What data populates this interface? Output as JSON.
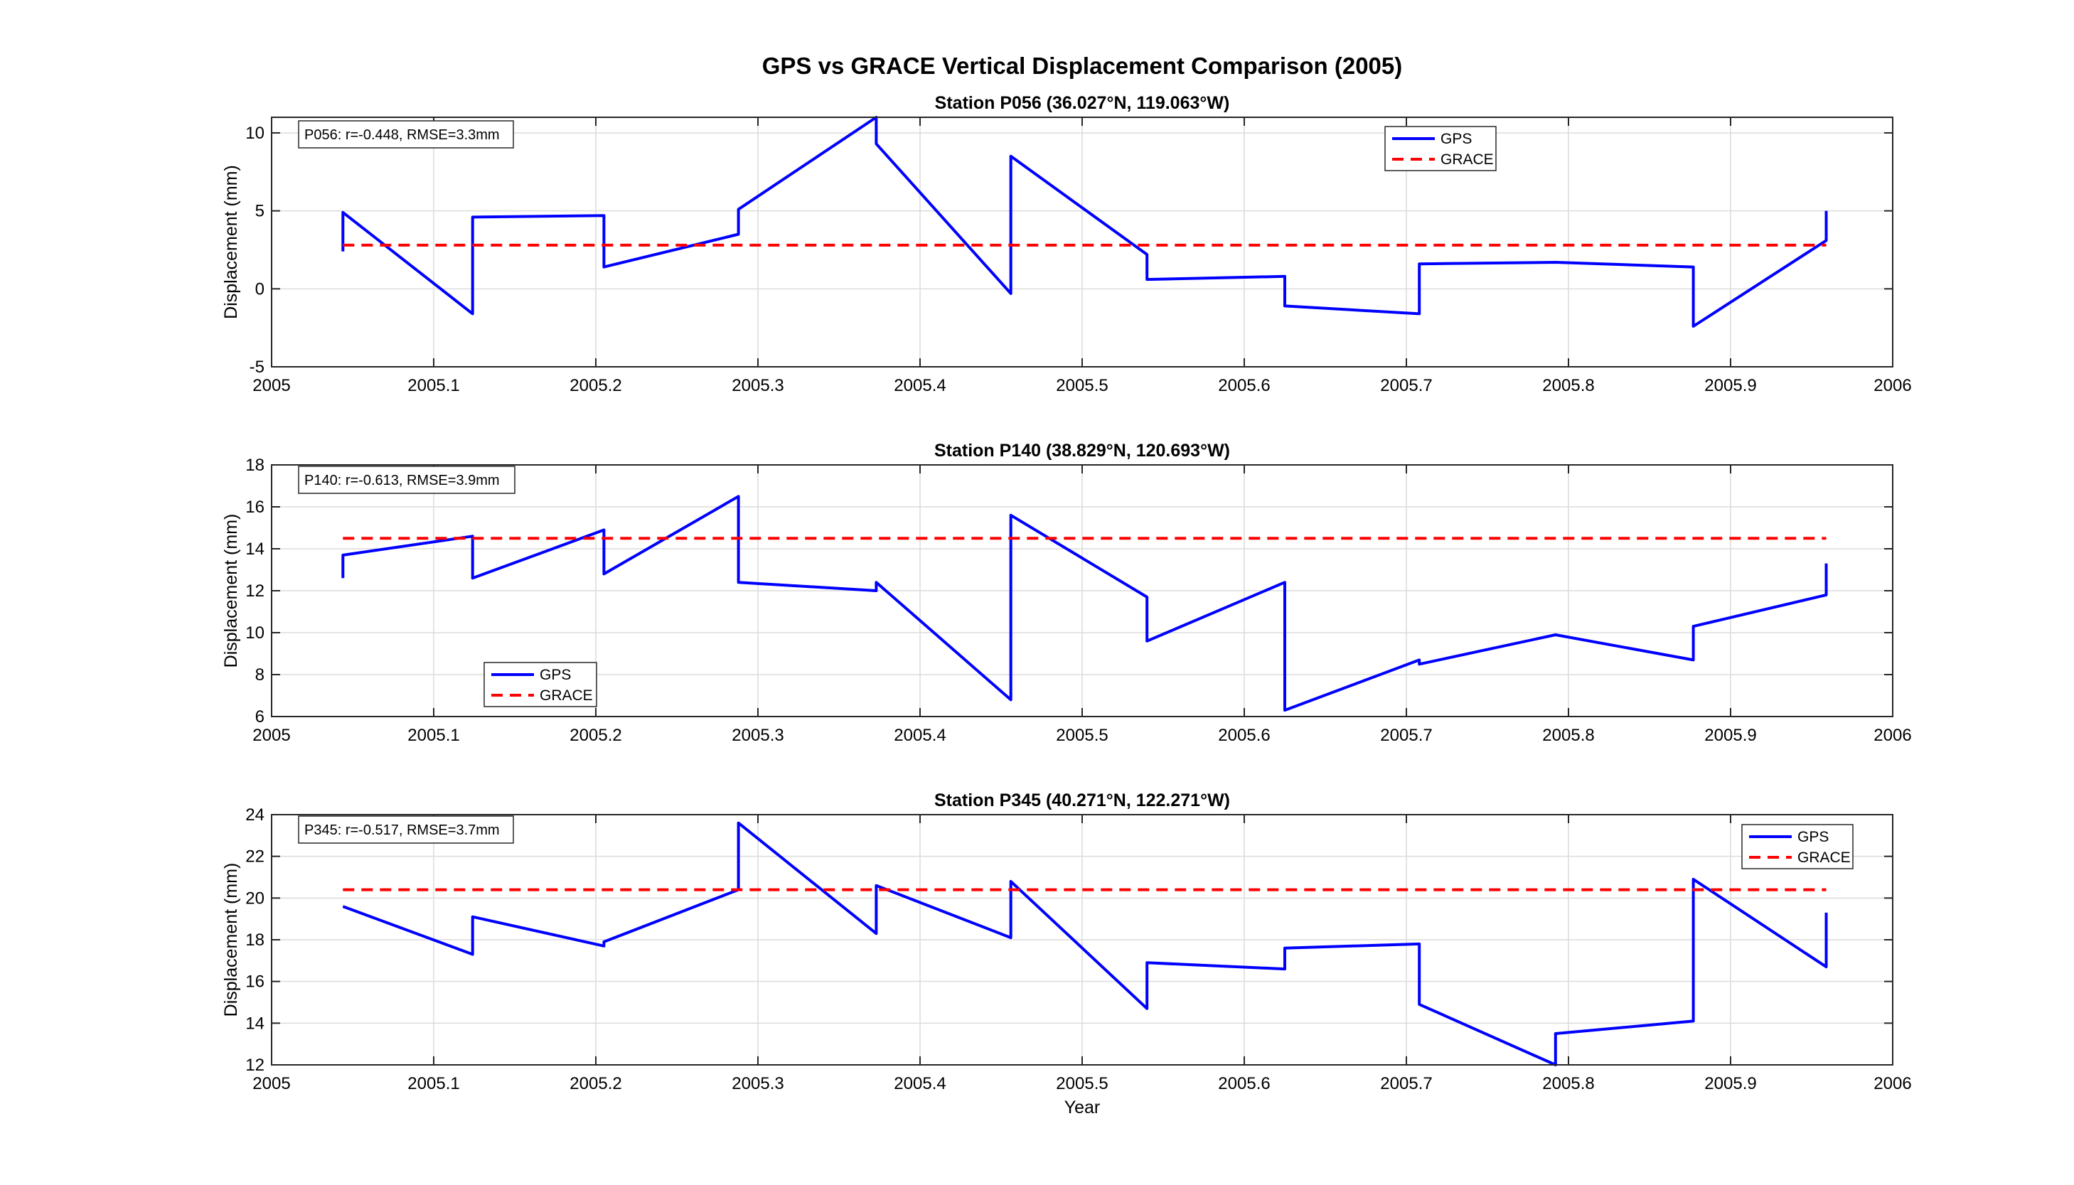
{
  "figure": {
    "title": "GPS vs GRACE Vertical Displacement Comparison (2005)"
  },
  "colors": {
    "gps": "#0000ff",
    "grace": "#ff0000",
    "grid": "#dcdcdc"
  },
  "chart_data": [
    {
      "type": "line",
      "title": "Station P056 (36.027°N, 119.063°W)",
      "xlabel": "",
      "ylabel": "Displacement (mm)",
      "xlim": [
        2005,
        2006
      ],
      "ylim": [
        -5,
        11
      ],
      "xticks": [
        2005,
        2005.1,
        2005.2,
        2005.3,
        2005.4,
        2005.5,
        2005.6,
        2005.7,
        2005.8,
        2005.9,
        2006
      ],
      "xtick_labels": [
        "2005",
        "2005.1",
        "2005.2",
        "2005.3",
        "2005.4",
        "2005.5",
        "2005.6",
        "2005.7",
        "2005.8",
        "2005.9",
        "2006"
      ],
      "yticks": [
        -5,
        0,
        5,
        10
      ],
      "ytick_labels": [
        "-5",
        "0",
        "5",
        "10"
      ],
      "grid": true,
      "legend_position": "top-right",
      "annotation": "P056: r=-0.448, RMSE=3.3mm",
      "series": [
        {
          "name": "GPS",
          "style": "solid",
          "x": [
            2005.044,
            2005.044,
            2005.124,
            2005.124,
            2005.205,
            2005.205,
            2005.288,
            2005.288,
            2005.373,
            2005.373,
            2005.456,
            2005.456,
            2005.54,
            2005.54,
            2005.625,
            2005.625,
            2005.708,
            2005.708,
            2005.792,
            2005.877,
            2005.877,
            2005.959,
            2005.959
          ],
          "y": [
            2.4,
            4.9,
            -1.6,
            4.6,
            4.7,
            1.4,
            3.5,
            5.1,
            11.0,
            9.3,
            -0.3,
            8.5,
            2.2,
            0.6,
            0.8,
            -1.1,
            -1.6,
            1.6,
            1.7,
            1.4,
            -2.4,
            3.1,
            5.0
          ]
        },
        {
          "name": "GRACE",
          "style": "dashed",
          "x": [
            2005.044,
            2005.959
          ],
          "y": [
            2.8,
            2.8
          ]
        }
      ]
    },
    {
      "type": "line",
      "title": "Station P140 (38.829°N, 120.693°W)",
      "xlabel": "",
      "ylabel": "Displacement (mm)",
      "xlim": [
        2005,
        2006
      ],
      "ylim": [
        6,
        18
      ],
      "xticks": [
        2005,
        2005.1,
        2005.2,
        2005.3,
        2005.4,
        2005.5,
        2005.6,
        2005.7,
        2005.8,
        2005.9,
        2006
      ],
      "xtick_labels": [
        "2005",
        "2005.1",
        "2005.2",
        "2005.3",
        "2005.4",
        "2005.5",
        "2005.6",
        "2005.7",
        "2005.8",
        "2005.9",
        "2006"
      ],
      "yticks": [
        6,
        8,
        10,
        12,
        14,
        16,
        18
      ],
      "ytick_labels": [
        "6",
        "8",
        "10",
        "12",
        "14",
        "16",
        "18"
      ],
      "grid": true,
      "legend_position": "bottom-left",
      "annotation": "P140: r=-0.613, RMSE=3.9mm",
      "series": [
        {
          "name": "GPS",
          "style": "solid",
          "x": [
            2005.044,
            2005.044,
            2005.124,
            2005.124,
            2005.205,
            2005.205,
            2005.288,
            2005.288,
            2005.373,
            2005.373,
            2005.456,
            2005.456,
            2005.54,
            2005.54,
            2005.625,
            2005.625,
            2005.708,
            2005.708,
            2005.792,
            2005.877,
            2005.877,
            2005.959,
            2005.959
          ],
          "y": [
            12.6,
            13.7,
            14.6,
            12.6,
            14.9,
            12.8,
            16.5,
            12.4,
            12.0,
            12.4,
            6.8,
            15.6,
            11.7,
            9.6,
            12.4,
            6.3,
            8.7,
            8.5,
            9.9,
            8.7,
            10.3,
            11.8,
            13.3
          ]
        },
        {
          "name": "GRACE",
          "style": "dashed",
          "x": [
            2005.044,
            2005.959
          ],
          "y": [
            14.5,
            14.5
          ]
        }
      ]
    },
    {
      "type": "line",
      "title": "Station P345 (40.271°N, 122.271°W)",
      "xlabel": "Year",
      "ylabel": "Displacement (mm)",
      "xlim": [
        2005,
        2006
      ],
      "ylim": [
        12,
        24
      ],
      "xticks": [
        2005,
        2005.1,
        2005.2,
        2005.3,
        2005.4,
        2005.5,
        2005.6,
        2005.7,
        2005.8,
        2005.9,
        2006
      ],
      "xtick_labels": [
        "2005",
        "2005.1",
        "2005.2",
        "2005.3",
        "2005.4",
        "2005.5",
        "2005.6",
        "2005.7",
        "2005.8",
        "2005.9",
        "2006"
      ],
      "yticks": [
        12,
        14,
        16,
        18,
        20,
        22,
        24
      ],
      "ytick_labels": [
        "12",
        "14",
        "16",
        "18",
        "20",
        "22",
        "24"
      ],
      "grid": true,
      "legend_position": "top-right",
      "annotation": "P345: r=-0.517, RMSE=3.7mm",
      "series": [
        {
          "name": "GPS",
          "style": "solid",
          "x": [
            2005.044,
            2005.124,
            2005.124,
            2005.205,
            2005.205,
            2005.288,
            2005.288,
            2005.373,
            2005.373,
            2005.456,
            2005.456,
            2005.54,
            2005.54,
            2005.625,
            2005.625,
            2005.708,
            2005.708,
            2005.792,
            2005.792,
            2005.877,
            2005.877,
            2005.959,
            2005.959
          ],
          "y": [
            19.6,
            17.3,
            19.1,
            17.7,
            17.9,
            20.4,
            23.6,
            18.3,
            20.6,
            18.1,
            20.8,
            14.7,
            16.9,
            16.6,
            17.6,
            17.8,
            14.9,
            12.0,
            13.5,
            14.1,
            20.9,
            16.7,
            19.3
          ]
        },
        {
          "name": "GRACE",
          "style": "dashed",
          "x": [
            2005.044,
            2005.959
          ],
          "y": [
            20.4,
            20.4
          ]
        }
      ]
    }
  ]
}
